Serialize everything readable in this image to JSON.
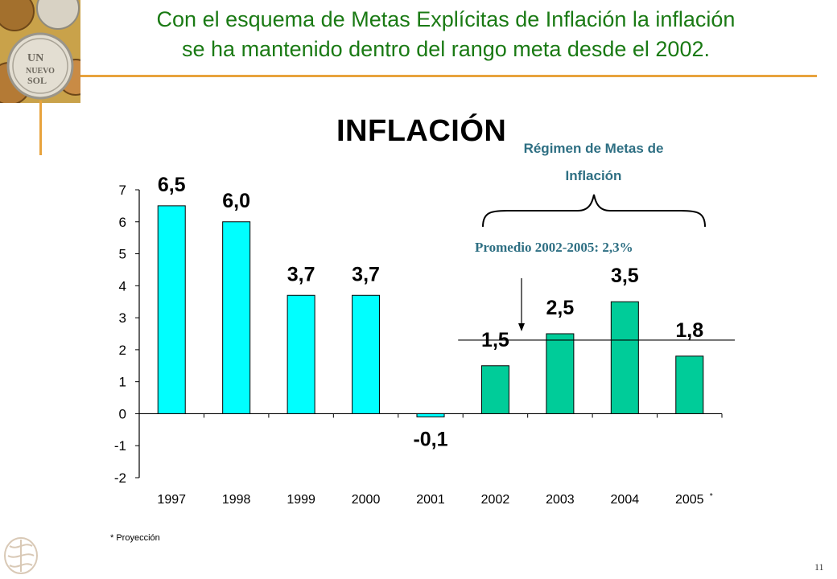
{
  "slide": {
    "title_line1": "Con el esquema de Metas Explícitas de Inflación la inflación",
    "title_line2": "se ha mantenido dentro del rango meta desde el 2002.",
    "page_number": "11",
    "footnote": "* Proyección",
    "accent_color": "#e8a33d",
    "title_color": "#1a7a14"
  },
  "annotations": {
    "regimen_line1": "Régimen de Metas de",
    "regimen_line2": "Inflación",
    "promedio": "Promedio 2002-2005: 2,3%",
    "annotation_color": "#2e6f83"
  },
  "chart_data": {
    "type": "bar",
    "title": "INFLACIÓN",
    "categories": [
      "1997",
      "1998",
      "1999",
      "2000",
      "2001",
      "2002",
      "2003",
      "2004",
      "2005"
    ],
    "category_suffix": {
      "2005": "*"
    },
    "values": [
      6.5,
      6.0,
      3.7,
      3.7,
      -0.1,
      1.5,
      2.5,
      3.5,
      1.8
    ],
    "data_labels": [
      "6,5",
      "6,0",
      "3,7",
      "3,7",
      "-0,1",
      "1,5",
      "2,5",
      "3,5",
      "1,8"
    ],
    "colors": {
      "pre_target": "#00ffff",
      "target_regime": "#00cc99"
    },
    "target_regime_start": "2002",
    "reference_line": 2.3,
    "xlabel": "",
    "ylabel": "",
    "ylim": [
      -2,
      7
    ],
    "yticks": [
      -2,
      -1,
      0,
      1,
      2,
      3,
      4,
      5,
      6,
      7
    ],
    "legend": "none",
    "grid": false
  }
}
